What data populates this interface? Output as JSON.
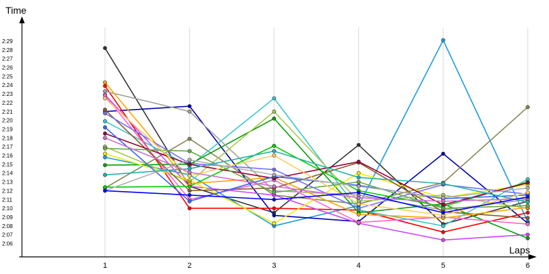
{
  "chart_data": {
    "type": "line",
    "xlabel": "Laps",
    "ylabel": "Time",
    "x": [
      1,
      2,
      3,
      4,
      5,
      6
    ],
    "y_unit": "seconds",
    "ylim": [
      125,
      150
    ],
    "grid": "vertical",
    "legend": "none",
    "x_tick_labels": [
      "1",
      "2",
      "3",
      "4",
      "5",
      "6"
    ],
    "y_tick_labels": [
      "2:06",
      "2:07",
      "2:08",
      "2:09",
      "2:10",
      "2:11",
      "2:12",
      "2:13",
      "2:14",
      "2:15",
      "2:16",
      "2:17",
      "2:18",
      "2:19",
      "2:20",
      "2:21",
      "2:22",
      "2:23",
      "2:24",
      "2:25",
      "2:26",
      "2:27",
      "2:28",
      "2:29"
    ],
    "series": [
      {
        "color": "#333333",
        "values": [
          148.2,
          132.5,
          129.5,
          137.2,
          128.2,
          130.8
        ]
      },
      {
        "color": "#1a9be0",
        "values": [
          135.8,
          133.8,
          128.0,
          130.3,
          149.1,
          128.5
        ]
      },
      {
        "color": "#0000b0",
        "values": [
          141.0,
          141.6,
          129.2,
          128.5,
          136.2,
          128.3
        ]
      },
      {
        "color": "#888855",
        "values": [
          132.3,
          137.9,
          131.5,
          130.5,
          132.9,
          141.5
        ]
      },
      {
        "color": "#ff0000",
        "values": [
          143.9,
          130.0,
          130.0,
          129.8,
          127.3,
          129.5
        ]
      },
      {
        "color": "#cc44ff",
        "values": [
          142.9,
          132.5,
          131.5,
          128.3,
          126.4,
          127.0
        ]
      },
      {
        "color": "#36c8c8",
        "values": [
          139.9,
          134.8,
          142.5,
          129.8,
          128.0,
          133.3
        ]
      },
      {
        "color": "#00a000",
        "values": [
          134.9,
          135.0,
          140.2,
          129.5,
          130.5,
          126.6
        ]
      },
      {
        "color": "#eeee00",
        "values": [
          136.2,
          133.2,
          128.3,
          134.0,
          131.2,
          132.7
        ]
      },
      {
        "color": "#a0a0a0",
        "values": [
          143.3,
          141.0,
          132.0,
          131.5,
          129.8,
          131.0
        ]
      },
      {
        "color": "#a8c850",
        "values": [
          137.0,
          133.0,
          141.0,
          130.8,
          131.5,
          130.0
        ]
      },
      {
        "color": "#ff66cc",
        "values": [
          142.8,
          131.0,
          133.2,
          128.4,
          129.0,
          128.2
        ]
      },
      {
        "color": "#8b5a2b",
        "values": [
          141.2,
          132.0,
          132.3,
          135.2,
          129.6,
          128.9
        ]
      },
      {
        "color": "#00cc00",
        "values": [
          132.4,
          132.5,
          137.1,
          132.0,
          130.2,
          133.0
        ]
      },
      {
        "color": "#ffa500",
        "values": [
          144.3,
          132.8,
          133.5,
          129.3,
          128.9,
          130.1
        ]
      },
      {
        "color": "#7070ff",
        "values": [
          140.8,
          135.1,
          134.4,
          130.0,
          132.7,
          131.6
        ]
      },
      {
        "color": "#990033",
        "values": [
          138.5,
          135.0,
          133.4,
          135.3,
          130.4,
          132.9
        ]
      },
      {
        "color": "#3366ff",
        "values": [
          139.2,
          130.8,
          133.6,
          132.6,
          131.1,
          131.5
        ]
      },
      {
        "color": "#66aa44",
        "values": [
          136.8,
          136.5,
          131.8,
          133.0,
          130.0,
          130.3
        ]
      },
      {
        "color": "#ffcc66",
        "values": [
          142.5,
          133.7,
          136.0,
          130.5,
          129.2,
          131.8
        ]
      },
      {
        "color": "#b0b0b0",
        "values": [
          132.0,
          135.5,
          133.8,
          132.5,
          131.2,
          132.3
        ]
      },
      {
        "color": "#20b2aa",
        "values": [
          133.8,
          134.5,
          136.5,
          133.5,
          132.8,
          130.7
        ]
      },
      {
        "color": "#d070d0",
        "values": [
          138.0,
          134.1,
          132.5,
          131.2,
          130.8,
          131.1
        ]
      },
      {
        "color": "#0000ff",
        "values": [
          132.0,
          131.5,
          131.0,
          131.8,
          129.5,
          131.3
        ]
      }
    ]
  }
}
